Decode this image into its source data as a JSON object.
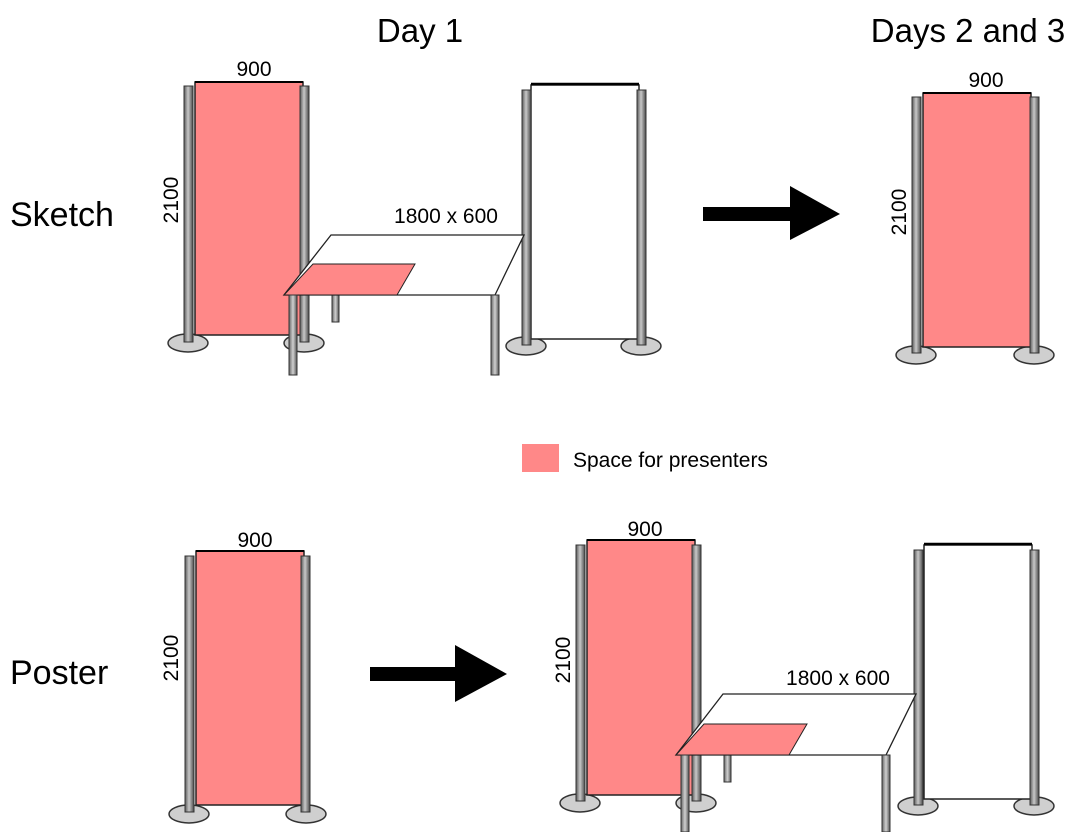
{
  "headings": {
    "day1": "Day 1",
    "days23": "Days 2 and 3"
  },
  "rows": {
    "sketch": "Sketch",
    "poster": "Poster"
  },
  "dimensions": {
    "width": "900",
    "height": "2100",
    "table": "1800 x 600"
  },
  "legend": {
    "label": "Space for presenters"
  },
  "colors": {
    "presenter_space": "#ff8888",
    "panel_outline": "#222222",
    "post_fill": "#8c8c8c",
    "foot_fill": "#cfcfcf",
    "arrow": "#000000"
  }
}
